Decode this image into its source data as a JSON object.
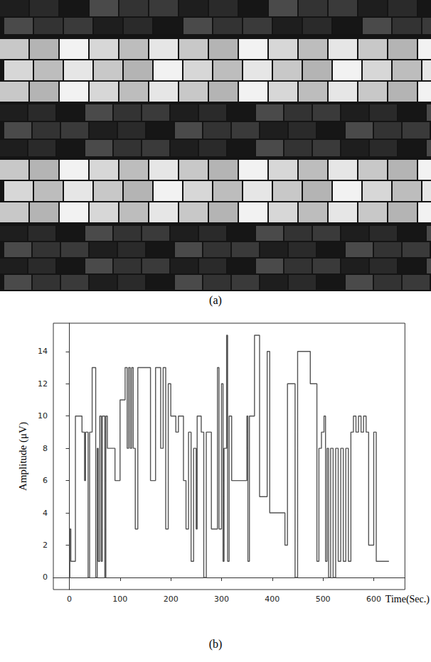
{
  "image": {
    "label": "(a)"
  },
  "chart_data": {
    "type": "line",
    "label": "(b)",
    "x_label": "Time(Sec.)",
    "y_label": "Amplitude (μV)",
    "line_style": "step",
    "color": "#555555",
    "grid": false,
    "xlim": [
      -31.5,
      661.5
    ],
    "xticks": [
      0,
      100,
      200,
      300,
      400,
      500,
      600
    ],
    "ylim": [
      -0.75,
      15.75
    ],
    "yticks": [
      0,
      2,
      4,
      6,
      8,
      10,
      12,
      14
    ],
    "x": [
      0,
      1,
      3,
      12,
      25,
      30,
      32,
      37,
      40,
      45,
      52,
      55,
      57,
      60,
      63,
      65,
      70,
      72,
      75,
      90,
      100,
      110,
      114,
      117,
      120,
      123,
      126,
      130,
      135,
      160,
      170,
      180,
      185,
      190,
      195,
      200,
      210,
      215,
      225,
      230,
      235,
      240,
      245,
      250,
      252,
      260,
      265,
      270,
      280,
      292,
      295,
      300,
      303,
      305,
      310,
      312,
      315,
      320,
      350,
      352,
      355,
      365,
      375,
      390,
      395,
      425,
      430,
      445,
      450,
      475,
      488,
      492,
      497,
      502,
      505,
      508,
      511,
      515,
      520,
      525,
      530,
      535,
      540,
      545,
      550,
      555,
      560,
      565,
      570,
      575,
      580,
      585,
      590,
      600,
      605,
      612,
      630
    ],
    "values": [
      0,
      3,
      1,
      10,
      9,
      6,
      9,
      0,
      9,
      13,
      0,
      8,
      1,
      10,
      1,
      10,
      0,
      10,
      8,
      6,
      11,
      13,
      8,
      13,
      8,
      13,
      8,
      3,
      13,
      6,
      13,
      8,
      13,
      3,
      12,
      10,
      9,
      10,
      6,
      3,
      9,
      1,
      8,
      3,
      10,
      9,
      0,
      9,
      3,
      13,
      3,
      12,
      1,
      8,
      15,
      1,
      10,
      6,
      10,
      1,
      10,
      15,
      5,
      14,
      4,
      2,
      12,
      0,
      14,
      12,
      1,
      8,
      9,
      10,
      1,
      8,
      0,
      8,
      0,
      8,
      1,
      8,
      1,
      8,
      1,
      9,
      10,
      9,
      10,
      9,
      10,
      9,
      2,
      9,
      1,
      1,
      1
    ]
  }
}
